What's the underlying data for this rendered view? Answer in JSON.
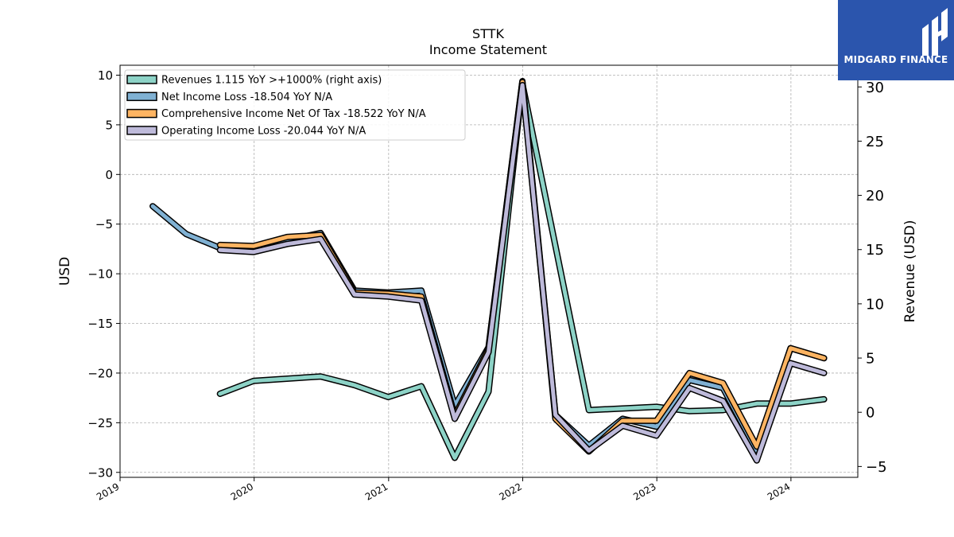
{
  "chart_data": {
    "type": "line",
    "title": "STTK",
    "subtitle": "Income Statement",
    "ylabel": "USD",
    "ylabel_right": "Revenue (USD)",
    "ylim": [
      -30.5,
      11
    ],
    "ylim_right": [
      -6,
      32
    ],
    "xlim": [
      "2019-01-01",
      "2024-07-01"
    ],
    "y_ticks": [
      "10",
      "5",
      "0",
      "−5",
      "−10",
      "−15",
      "−20",
      "−25",
      "−30"
    ],
    "y_right_ticks": [
      "30",
      "25",
      "20",
      "15",
      "10",
      "5",
      "0",
      "−5"
    ],
    "x_ticks": [
      "2019",
      "2020",
      "2021",
      "2022",
      "2023",
      "2024"
    ],
    "grid": true,
    "legend_position": "top-left",
    "series": [
      {
        "name": "Revenues",
        "legend_label": "Revenues  1.115 YoY >+1000% (right axis)",
        "axis": "right",
        "color": "#8dd3c7",
        "points": [
          [
            "2019-09-30",
            1.7
          ],
          [
            "2019-12-31",
            2.9
          ],
          [
            "2020-06-30",
            3.3
          ],
          [
            "2020-09-30",
            2.5
          ],
          [
            "2020-12-31",
            1.4
          ],
          [
            "2021-03-31",
            2.4
          ],
          [
            "2021-06-30",
            -4.2
          ],
          [
            "2021-09-30",
            1.9
          ],
          [
            "2021-12-31",
            30.3
          ],
          [
            "2022-06-30",
            0.2
          ],
          [
            "2022-12-31",
            0.5
          ],
          [
            "2023-03-31",
            0.1
          ],
          [
            "2023-06-30",
            0.2
          ],
          [
            "2023-09-30",
            0.8
          ],
          [
            "2023-12-31",
            0.8
          ],
          [
            "2024-03-31",
            1.2
          ]
        ]
      },
      {
        "name": "Net Income Loss",
        "legend_label": "Net Income Loss  -18.504 YoY N/A",
        "axis": "left",
        "color": "#80b1d3",
        "points": [
          [
            "2019-03-31",
            -3.2
          ],
          [
            "2019-06-30",
            -6.0
          ],
          [
            "2019-09-30",
            -7.4
          ],
          [
            "2019-12-31",
            -7.5
          ],
          [
            "2020-03-31",
            -6.6
          ],
          [
            "2020-06-30",
            -5.9
          ],
          [
            "2020-09-30",
            -11.7
          ],
          [
            "2020-12-31",
            -11.9
          ],
          [
            "2021-03-31",
            -11.7
          ],
          [
            "2021-06-30",
            -23.3
          ],
          [
            "2021-09-30",
            -17.4
          ],
          [
            "2021-12-31",
            9.4
          ],
          [
            "2022-03-31",
            -24.2
          ],
          [
            "2022-06-30",
            -27.3
          ],
          [
            "2022-09-30",
            -24.6
          ],
          [
            "2022-12-31",
            -25.4
          ],
          [
            "2023-03-31",
            -20.7
          ],
          [
            "2023-06-30",
            -21.5
          ],
          [
            "2023-09-30",
            -27.8
          ],
          [
            "2023-12-31",
            -17.5
          ],
          [
            "2024-03-31",
            -18.5
          ]
        ]
      },
      {
        "name": "Comprehensive Income Net Of Tax",
        "legend_label": "Comprehensive Income Net Of Tax  -18.522 YoY N/A",
        "axis": "left",
        "color": "#fdb462",
        "points": [
          [
            "2019-09-30",
            -7.1
          ],
          [
            "2019-12-31",
            -7.2
          ],
          [
            "2020-03-31",
            -6.3
          ],
          [
            "2020-06-30",
            -6.1
          ],
          [
            "2020-09-30",
            -11.9
          ],
          [
            "2020-12-31",
            -12.0
          ],
          [
            "2021-03-31",
            -12.3
          ],
          [
            "2021-06-30",
            -24.3
          ],
          [
            "2021-09-30",
            -17.6
          ],
          [
            "2021-12-31",
            9.3
          ],
          [
            "2022-03-31",
            -24.6
          ],
          [
            "2022-06-30",
            -27.9
          ],
          [
            "2022-09-30",
            -24.8
          ],
          [
            "2022-12-31",
            -24.8
          ],
          [
            "2023-03-31",
            -20.0
          ],
          [
            "2023-06-30",
            -21.0
          ],
          [
            "2023-09-30",
            -27.4
          ],
          [
            "2023-12-31",
            -17.5
          ],
          [
            "2024-03-31",
            -18.5
          ]
        ]
      },
      {
        "name": "Operating Income Loss",
        "legend_label": "Operating Income Loss  -20.044 YoY N/A",
        "axis": "left",
        "color": "#bebada",
        "points": [
          [
            "2019-09-30",
            -7.6
          ],
          [
            "2019-12-31",
            -7.8
          ],
          [
            "2020-03-31",
            -7.0
          ],
          [
            "2020-06-30",
            -6.5
          ],
          [
            "2020-09-30",
            -12.1
          ],
          [
            "2020-12-31",
            -12.3
          ],
          [
            "2021-03-31",
            -12.7
          ],
          [
            "2021-06-30",
            -24.6
          ],
          [
            "2021-09-30",
            -17.9
          ],
          [
            "2021-12-31",
            9.0
          ],
          [
            "2022-03-31",
            -24.2
          ],
          [
            "2022-06-30",
            -27.8
          ],
          [
            "2022-09-30",
            -25.3
          ],
          [
            "2022-12-31",
            -26.3
          ],
          [
            "2023-03-31",
            -21.5
          ],
          [
            "2023-06-30",
            -22.8
          ],
          [
            "2023-09-30",
            -28.8
          ],
          [
            "2023-12-31",
            -19.0
          ],
          [
            "2024-03-31",
            -20.0
          ]
        ]
      }
    ]
  },
  "logo": {
    "text": "MIDGARD FINANCE",
    "icon": "midgard-logo-icon",
    "background_color": "#2b55ad"
  }
}
